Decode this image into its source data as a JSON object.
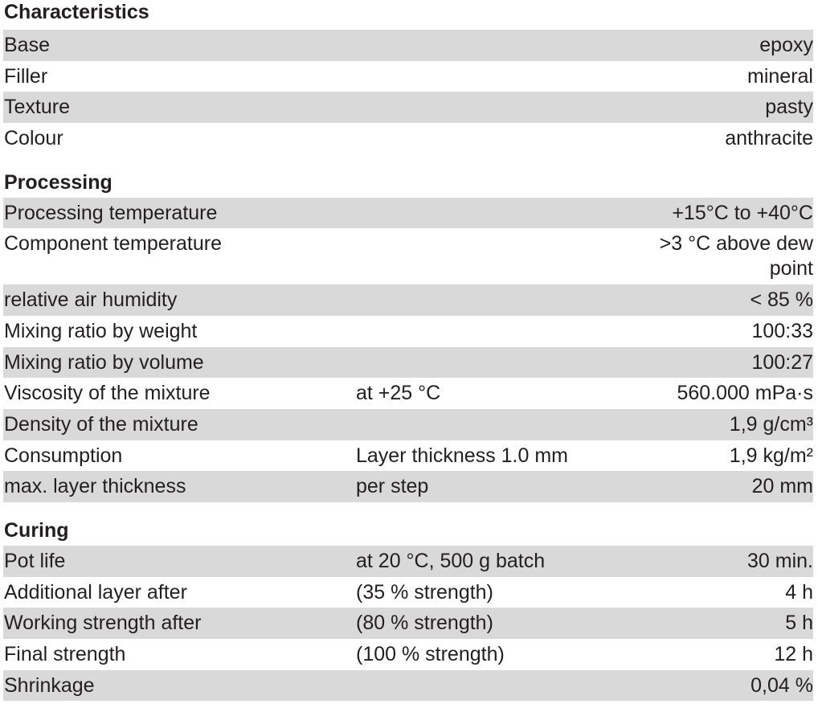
{
  "sections": [
    {
      "title": "Characteristics",
      "rows": [
        {
          "label": "Base",
          "value": "epoxy"
        },
        {
          "label": "Filler",
          "value": "mineral"
        },
        {
          "label": "Texture",
          "value": "pasty"
        },
        {
          "label": "Colour",
          "value": "anthracite"
        }
      ]
    },
    {
      "title": "Processing",
      "rows": [
        {
          "label": "Processing temperature",
          "value": "+15°C to +40°C"
        },
        {
          "label": "Component temperature",
          "value": ">3 °C above dew point"
        },
        {
          "label": "relative air humidity",
          "value": "< 85 %"
        },
        {
          "label": "Mixing ratio by weight",
          "value": "100:33"
        },
        {
          "label": "Mixing ratio by volume",
          "value": "100:27"
        },
        {
          "label": "Viscosity of the mixture",
          "condition": "at +25 °C",
          "value": "560.000 mPa·s"
        },
        {
          "label": "Density of the mixture",
          "value": "1,9 g/cm³"
        },
        {
          "label": "Consumption",
          "condition": "Layer thickness 1.0 mm",
          "value": "1,9 kg/m²"
        },
        {
          "label": "max. layer thickness",
          "condition": "per step",
          "value": "20 mm"
        }
      ]
    },
    {
      "title": "Curing",
      "rows": [
        {
          "label": "Pot life",
          "condition": "at 20 °C, 500 g batch",
          "value": "30 min."
        },
        {
          "label": "Additional layer after",
          "condition": "(35 % strength)",
          "value": "4 h"
        },
        {
          "label": "Working strength after",
          "condition": "(80 % strength)",
          "value": "5 h"
        },
        {
          "label": "Final strength",
          "condition": "(100 % strength)",
          "value": "12 h"
        },
        {
          "label": "Shrinkage",
          "value": "0,04 %"
        }
      ]
    }
  ]
}
